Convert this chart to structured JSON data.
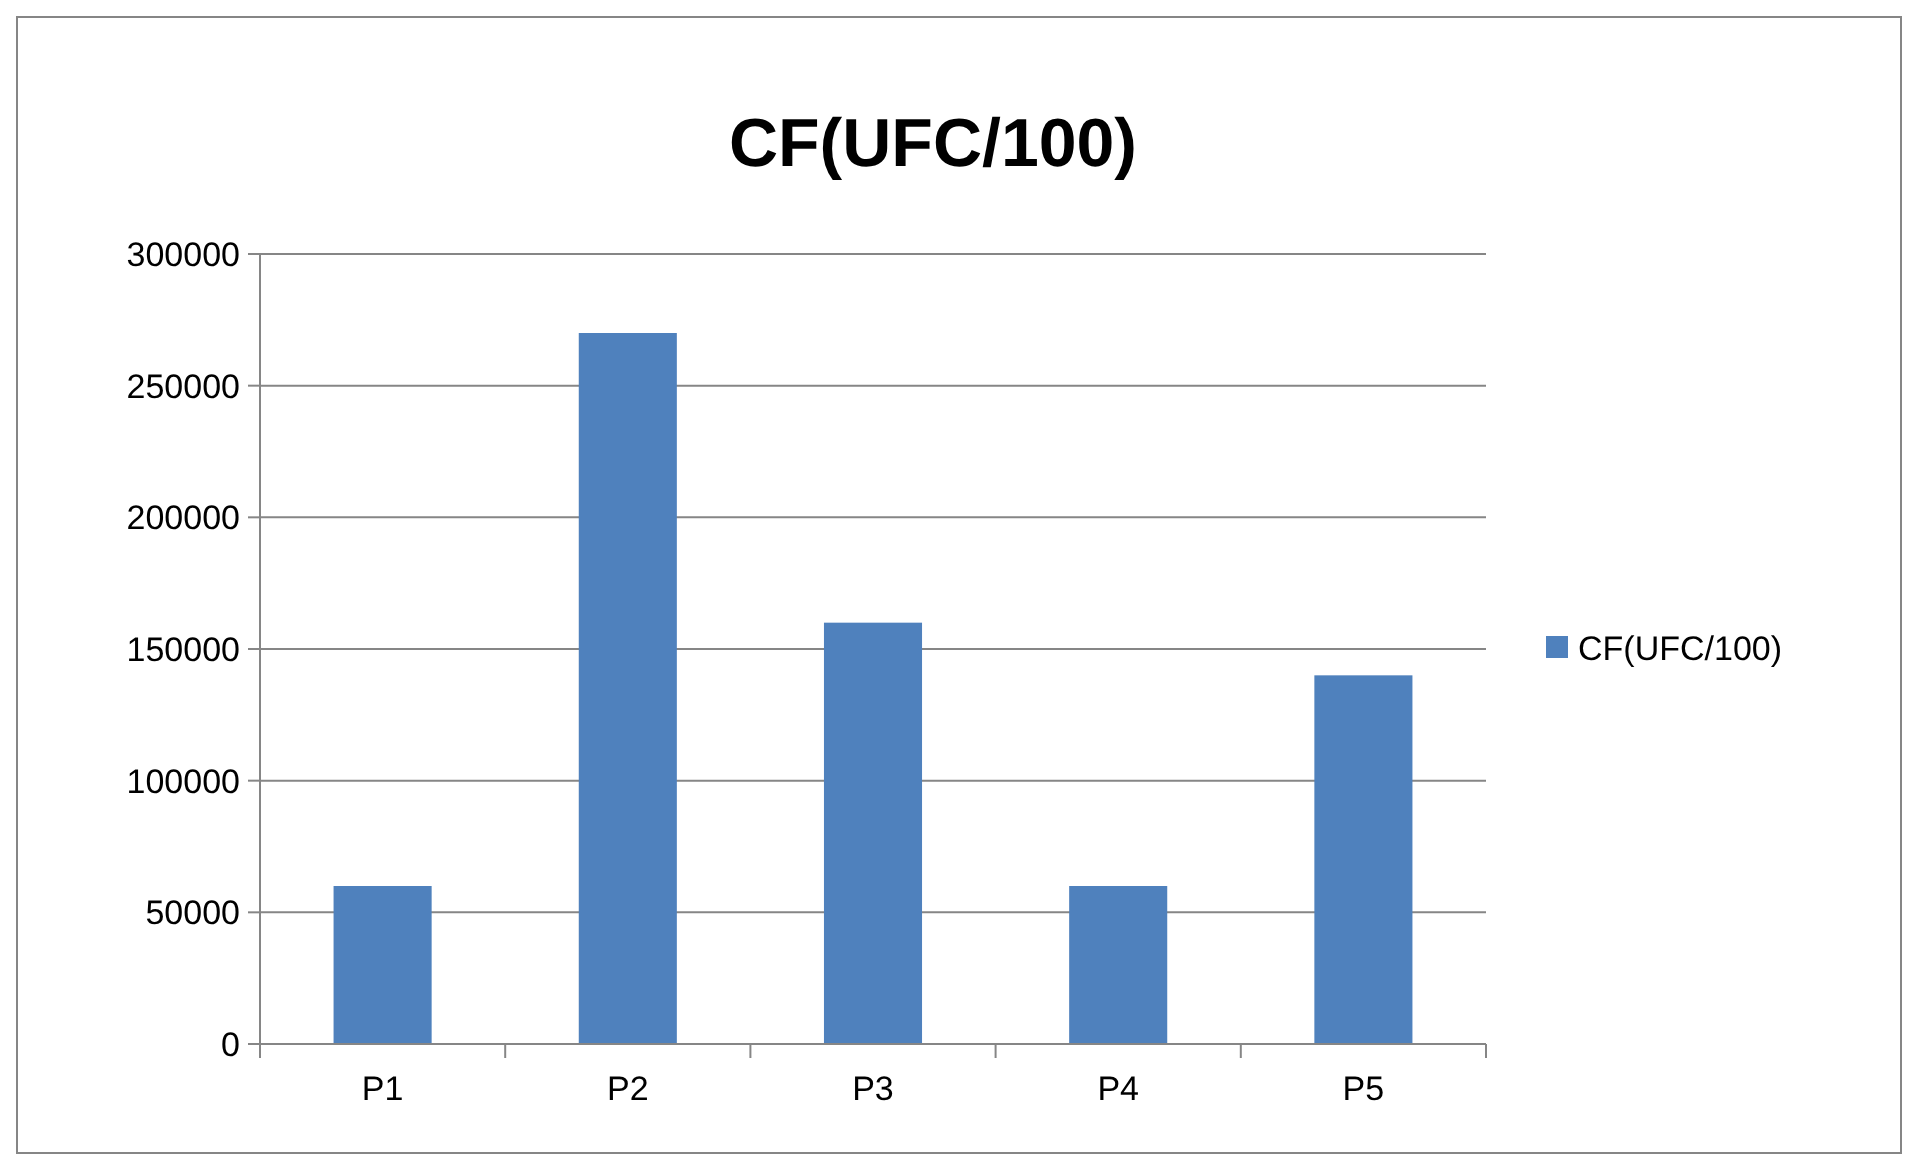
{
  "chart_data": {
    "type": "bar",
    "title": "CF(UFC/100)",
    "categories": [
      "P1",
      "P2",
      "P3",
      "P4",
      "P5"
    ],
    "series": [
      {
        "name": "CF(UFC/100)",
        "color": "#4f81bd",
        "values": [
          60000,
          270000,
          160000,
          60000,
          140000
        ]
      }
    ],
    "ylim": [
      0,
      300000
    ],
    "yticks": [
      0,
      50000,
      100000,
      150000,
      200000,
      250000,
      300000
    ],
    "grid": "y",
    "legend": "right"
  }
}
